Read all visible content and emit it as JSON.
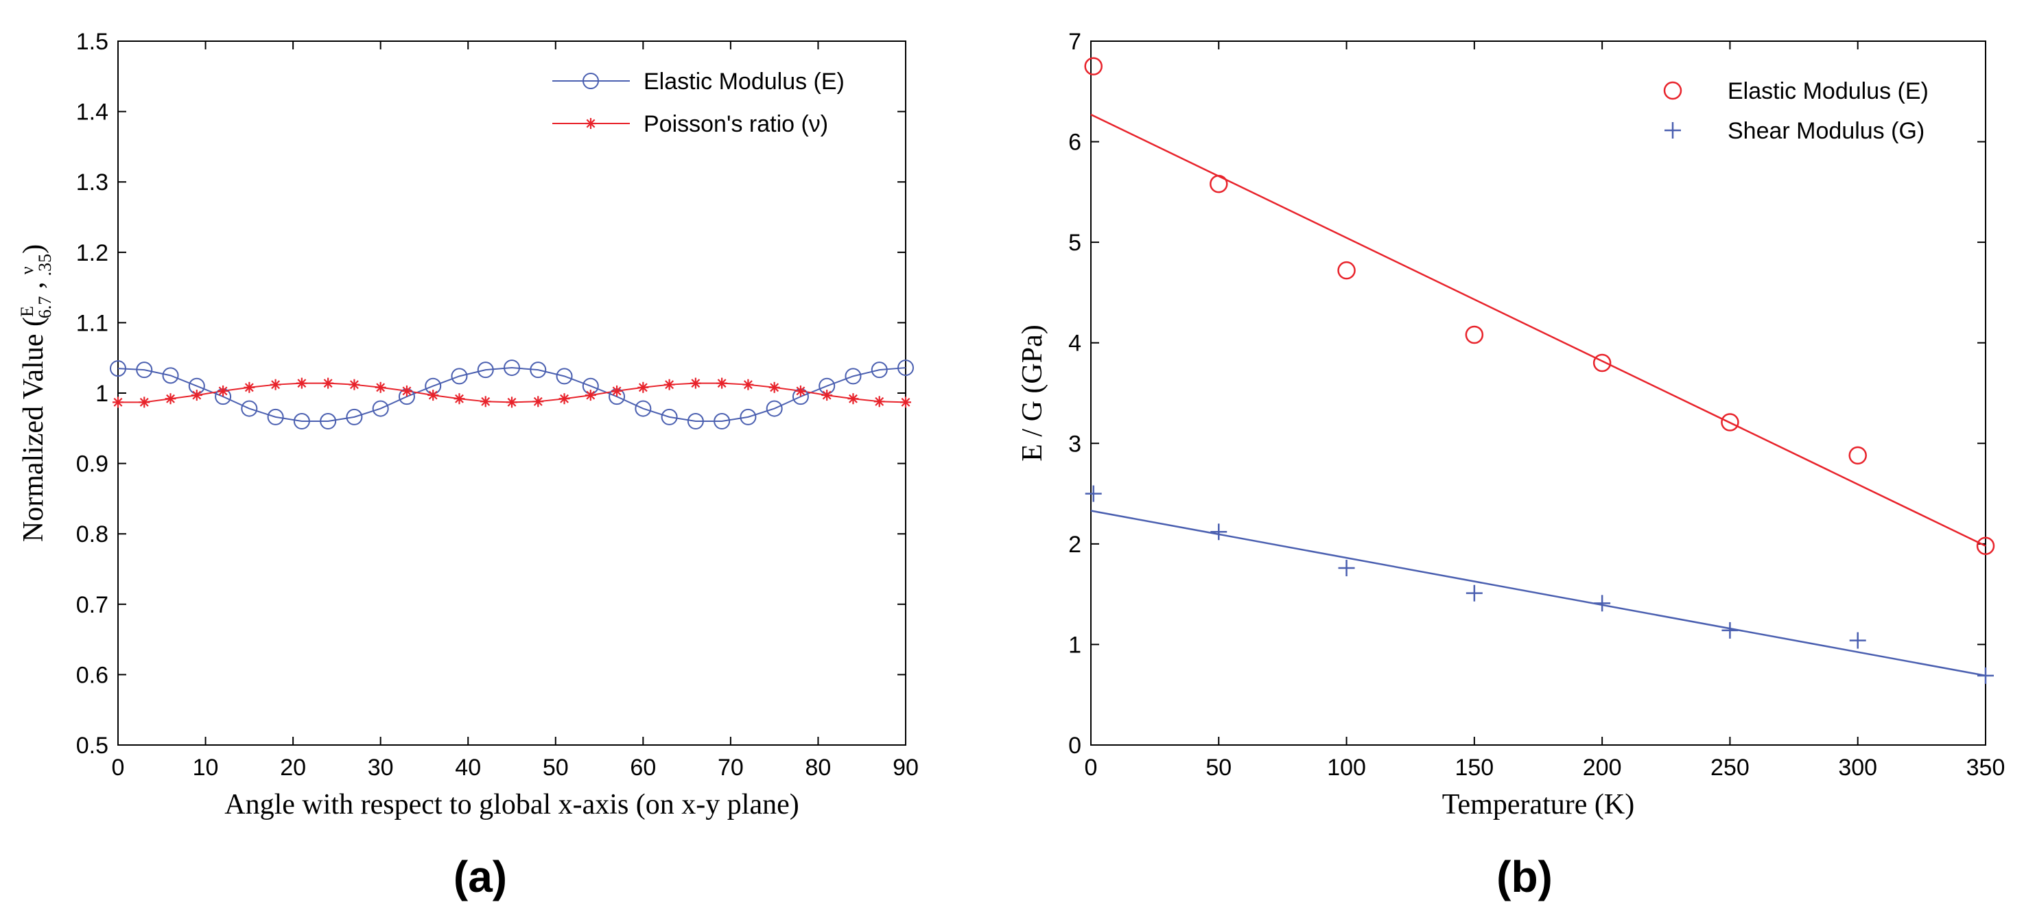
{
  "chart_data": [
    {
      "panel_label": "(a)",
      "type": "line",
      "title": "",
      "xlabel": "Angle with respect to global x-axis (on x-y plane)",
      "ylabel": "Normalized Value (E/6.7 , ν/.35)",
      "ylabel_prefix": "Normalized Value (",
      "ylabel_suffix": ")",
      "ylabel_frac1_num": "E",
      "ylabel_frac1_den": "6.7",
      "ylabel_frac2_num": "ν",
      "ylabel_frac2_den": ".35",
      "xlim": [
        0,
        90
      ],
      "ylim": [
        0.5,
        1.5
      ],
      "xticks": [
        0,
        10,
        20,
        30,
        40,
        50,
        60,
        70,
        80,
        90
      ],
      "yticks": [
        0.5,
        0.6,
        0.7,
        0.8,
        0.9,
        1,
        1.1,
        1.2,
        1.3,
        1.4,
        1.5
      ],
      "xtick_labels": [
        "0",
        "10",
        "20",
        "30",
        "40",
        "50",
        "60",
        "70",
        "80",
        "90"
      ],
      "ytick_labels": [
        "0.5",
        "0.6",
        "0.7",
        "0.8",
        "0.9",
        "1",
        "1.1",
        "1.2",
        "1.3",
        "1.4",
        "1.5"
      ],
      "legend_position": "top-right",
      "x": [
        0,
        3,
        6,
        9,
        12,
        15,
        18,
        21,
        24,
        27,
        30,
        33,
        36,
        39,
        42,
        45,
        48,
        51,
        54,
        57,
        60,
        63,
        66,
        69,
        72,
        75,
        78,
        81,
        84,
        87,
        90
      ],
      "series": [
        {
          "name": "Elastic Modulus (E)",
          "color": "#4a5fb0",
          "marker": "circle",
          "values": [
            1.035,
            1.033,
            1.025,
            1.01,
            0.995,
            0.978,
            0.966,
            0.96,
            0.96,
            0.966,
            0.978,
            0.995,
            1.01,
            1.024,
            1.033,
            1.036,
            1.033,
            1.024,
            1.01,
            0.995,
            0.978,
            0.966,
            0.96,
            0.96,
            0.966,
            0.978,
            0.995,
            1.01,
            1.024,
            1.033,
            1.036
          ]
        },
        {
          "name": "Poisson's ratio (ν)",
          "color": "#e8232b",
          "marker": "asterisk",
          "values": [
            0.987,
            0.987,
            0.992,
            0.997,
            1.003,
            1.008,
            1.012,
            1.014,
            1.014,
            1.012,
            1.008,
            1.003,
            0.997,
            0.992,
            0.988,
            0.987,
            0.988,
            0.992,
            0.997,
            1.003,
            1.008,
            1.012,
            1.014,
            1.014,
            1.012,
            1.008,
            1.003,
            0.997,
            0.992,
            0.988,
            0.987
          ]
        }
      ]
    },
    {
      "panel_label": "(b)",
      "type": "scatter",
      "title": "",
      "xlabel": "Temperature (K)",
      "ylabel": "E / G (GPa)",
      "xlim": [
        0,
        350
      ],
      "ylim": [
        0,
        7
      ],
      "xticks": [
        0,
        50,
        100,
        150,
        200,
        250,
        300,
        350
      ],
      "yticks": [
        0,
        1,
        2,
        3,
        4,
        5,
        6,
        7
      ],
      "xtick_labels": [
        "0",
        "50",
        "100",
        "150",
        "200",
        "250",
        "300",
        "350"
      ],
      "ytick_labels": [
        "0",
        "1",
        "2",
        "3",
        "4",
        "5",
        "6",
        "7"
      ],
      "legend_position": "top-right",
      "x": [
        1,
        50,
        100,
        150,
        200,
        250,
        300,
        350
      ],
      "series": [
        {
          "name": "Elastic Modulus (E)",
          "color": "#e8232b",
          "marker": "circle",
          "values": [
            6.75,
            5.58,
            4.72,
            4.08,
            3.8,
            3.21,
            2.88,
            1.98
          ],
          "fit_line": {
            "x": [
              0,
              350
            ],
            "y": [
              6.27,
              1.98
            ]
          }
        },
        {
          "name": "Shear Modulus (G)",
          "color": "#4a5fb0",
          "marker": "plus",
          "values": [
            2.5,
            2.12,
            1.76,
            1.51,
            1.41,
            1.14,
            1.04,
            0.69
          ],
          "fit_line": {
            "x": [
              0,
              350
            ],
            "y": [
              2.33,
              0.69
            ]
          }
        }
      ]
    }
  ]
}
